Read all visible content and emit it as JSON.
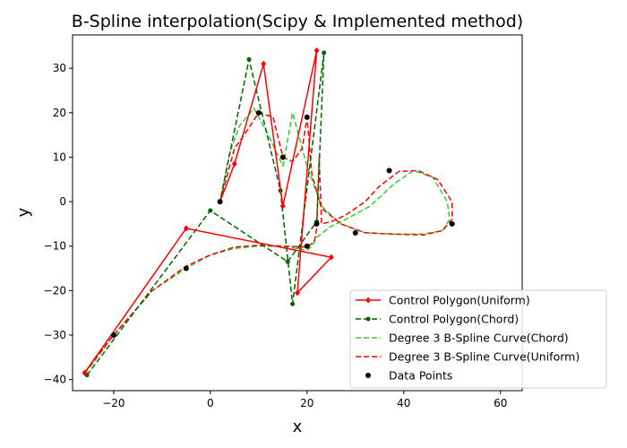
{
  "chart_data": {
    "type": "line",
    "title": "B-Spline interpolation(Scipy & Implemented method)",
    "xlabel": "x",
    "ylabel": "y",
    "xlim": [
      -28.5,
      64.5
    ],
    "ylim": [
      -42.5,
      37.5
    ],
    "xticks": [
      -20,
      0,
      20,
      40,
      60
    ],
    "yticks": [
      -40,
      -30,
      -20,
      -10,
      0,
      10,
      20,
      30
    ],
    "grid": false,
    "legend_position": "lower-right",
    "colors": {
      "control_uniform": "#ff0000",
      "control_chord": "#006400",
      "curve_chord": "#33cc33",
      "curve_uniform": "#ff0000",
      "data_points": "#000000"
    },
    "series": [
      {
        "name": "Control Polygon(Uniform)",
        "style": "solid",
        "marker": "diamond",
        "x": [
          -26,
          -5,
          25,
          18,
          22,
          15,
          11,
          5,
          2
        ],
        "y": [
          -38.5,
          -6,
          -12.5,
          -20.5,
          34,
          -1,
          31,
          8.5,
          0
        ]
      },
      {
        "name": "Control Polygon(Chord)",
        "style": "dashed",
        "marker": "circle",
        "x": [
          -25.5,
          0,
          16,
          22,
          23.5,
          17,
          14.5,
          8,
          2
        ],
        "y": [
          -39,
          -2,
          -13.5,
          -4.5,
          33.5,
          -23,
          2.5,
          32,
          0
        ]
      },
      {
        "name": "Degree 3 B-Spline Curve(Chord)",
        "style": "dashed",
        "x": [
          -26,
          -20,
          -12,
          -5,
          0,
          5,
          10,
          15,
          20,
          21,
          22,
          25,
          28,
          33,
          38,
          42,
          46,
          49,
          49.5,
          48,
          44,
          38,
          32,
          27,
          23,
          20,
          17,
          15,
          12,
          9,
          6,
          4,
          2
        ],
        "y": [
          -38.8,
          -30,
          -20,
          -15,
          -12,
          -10.5,
          -10,
          -10,
          -11,
          -10,
          -8,
          -5.5,
          -4,
          -1,
          4,
          7,
          5.5,
          0,
          -4,
          -6.5,
          -7.3,
          -7.3,
          -7,
          -5,
          -1,
          8,
          20,
          8,
          15,
          21,
          17,
          11,
          0
        ]
      },
      {
        "name": "Degree 3 B-Spline Curve(Uniform)",
        "style": "dashed",
        "x": [
          -26,
          -20,
          -12,
          -5,
          0,
          5,
          10,
          15,
          20,
          21.5,
          22,
          22.5,
          23,
          25,
          28,
          32,
          35,
          39,
          43,
          47,
          50,
          50,
          48,
          44,
          38,
          32,
          27,
          23,
          21,
          20,
          19,
          17,
          15,
          13,
          10,
          7,
          5,
          3,
          2
        ],
        "y": [
          -38.5,
          -30,
          -20,
          -14.5,
          -12,
          -10.2,
          -9.8,
          -10,
          -10.2,
          -9,
          -6,
          10,
          -5,
          -4.5,
          -3,
          0,
          3.5,
          6.8,
          7,
          5,
          0,
          -4,
          -6.5,
          -7.5,
          -7.3,
          -7,
          -5,
          -1.5,
          6,
          19,
          12,
          9,
          10,
          19,
          20,
          15,
          12,
          4,
          0
        ]
      }
    ],
    "data_points": {
      "name": "Data Points",
      "x": [
        -20,
        -5,
        2,
        10,
        15,
        20,
        20,
        22,
        30,
        37,
        50
      ],
      "y": [
        -30,
        -15,
        0,
        20,
        10,
        19,
        -10,
        -5,
        -7,
        7,
        -5
      ]
    }
  }
}
